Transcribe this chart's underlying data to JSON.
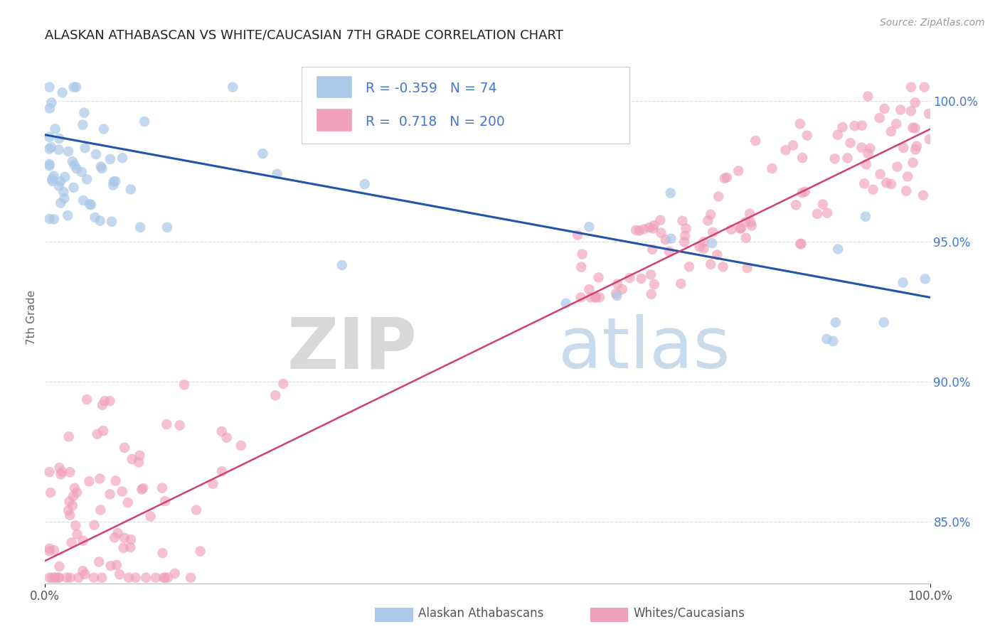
{
  "title": "ALASKAN ATHABASCAN VS WHITE/CAUCASIAN 7TH GRADE CORRELATION CHART",
  "source_text": "Source: ZipAtlas.com",
  "ylabel": "7th Grade",
  "watermark_zip": "ZIP",
  "watermark_atlas": "atlas",
  "x_min": 0.0,
  "x_max": 1.0,
  "y_min": 0.828,
  "y_max": 1.018,
  "right_yticks": [
    0.85,
    0.9,
    0.95,
    1.0
  ],
  "right_ytick_labels": [
    "85.0%",
    "90.0%",
    "95.0%",
    "100.0%"
  ],
  "legend_r_blue": "-0.359",
  "legend_n_blue": "74",
  "legend_r_pink": "0.718",
  "legend_n_pink": "200",
  "blue_color": "#aac8e8",
  "blue_line_color": "#2255aa",
  "pink_color": "#f0a0b8",
  "pink_line_color": "#d04070",
  "grid_color": "#dddddd",
  "title_color": "#222222",
  "label_color": "#4477cc",
  "blue_trendline": [
    0.0,
    1.0,
    0.988,
    0.93
  ],
  "pink_trendline": [
    0.0,
    1.0,
    0.836,
    0.99
  ]
}
